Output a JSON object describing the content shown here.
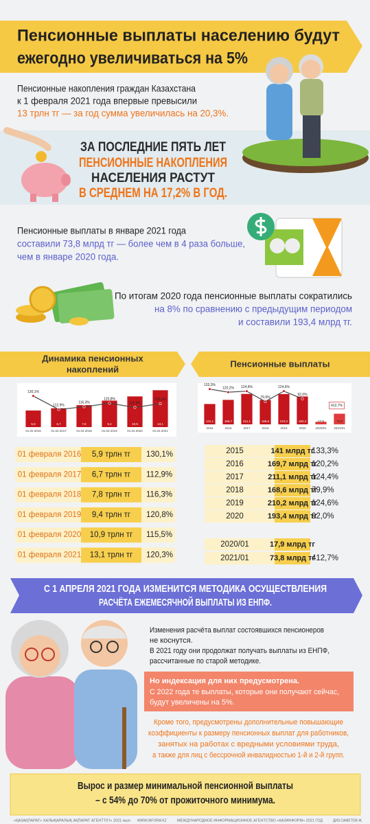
{
  "header": {
    "title_lines": [
      "Пенсионные выплаты населению будут",
      "ежегодно увеличиваться на 5%"
    ]
  },
  "intro": {
    "lines": [
      "Пенсионные накопления граждан Казахстана",
      "к 1 февраля 2021 года впервые превысили"
    ],
    "highlight": "13 трлн тг — за год сумма увеличилась на 20,3%."
  },
  "growth": {
    "lines": [
      "ЗА ПОСЛЕДНИЕ ПЯТЬ ЛЕТ",
      "ПЕНСИОННЫЕ НАКОПЛЕНИЯ",
      "НАСЕЛЕНИЯ РАСТУТ",
      "В СРЕДНЕМ НА 17,2% В ГОД."
    ]
  },
  "january": {
    "lines": [
      "Пенсионные выплаты в январе 2021 года",
      "составили 73,8 млрд тг — более чем в 4 раза больше,",
      "чем в январе 2020 года."
    ]
  },
  "results": {
    "lines": [
      "По итогам 2020 года пенсионные выплаты сократились",
      "на 8% по сравнению с предыдущим периодом",
      "и составили 193,4 млрд тг."
    ]
  },
  "savings": {
    "title_lines": [
      "Динамика пенсионных",
      "накоплений"
    ],
    "chart": {
      "categories": [
        "01.02.2016",
        "01.02.2017",
        "01.02.2018",
        "01.02.2019",
        "01.02.2020",
        "01.02.2021"
      ],
      "values": [
        5.9,
        6.7,
        7.8,
        9.4,
        10.9,
        13.1
      ],
      "value_labels": [
        "5,9",
        "6,7",
        "7,8",
        "9,4",
        "10,9",
        "13,1"
      ],
      "growth": [
        130.1,
        112.9,
        116.3,
        120.8,
        115.5,
        120.3
      ],
      "growth_labels": [
        "130,1%",
        "112,9%",
        "116,3%",
        "120,8%",
        "115,5%",
        "120,3%"
      ]
    },
    "rows": [
      [
        "01 февраля 2016",
        "5,9 трлн тг",
        "130,1%"
      ],
      [
        "01 февраля 2017",
        "6,7 трлн тг",
        "112,9%"
      ],
      [
        "01 февраля 2018",
        "7,8 трлн тг",
        "116,3%"
      ],
      [
        "01 февраля 2019",
        "9,4 трлн тг",
        "120,8%"
      ],
      [
        "01 февраля 2020",
        "10,9 трлн тг",
        "115,5%"
      ],
      [
        "01 февраля 2021",
        "13,1 трлн тг",
        "120,3%"
      ]
    ]
  },
  "payments": {
    "title": "Пенсионные выплаты",
    "chart": {
      "categories": [
        "2015",
        "2016",
        "2017",
        "2018",
        "2019",
        "2020",
        "2020/01",
        "2021/01"
      ],
      "values": [
        141.1,
        169.7,
        211.1,
        168.6,
        210.2,
        193.4,
        17.9,
        73.8
      ],
      "value_labels": [
        "141,1",
        "169,7",
        "211,1",
        "168,6",
        "210,2",
        "193,4",
        "17,9",
        "73,8"
      ],
      "growth": [
        133.3,
        120.2,
        124.4,
        79.9,
        124.6,
        92.0,
        null,
        null
      ],
      "growth_labels": [
        "133,3%",
        "120,2%",
        "124,4%",
        "79,9%",
        "124,6%",
        "92,0%",
        null,
        null
      ],
      "monthly_growth": 412.7,
      "monthly_growth_label": "412,7%"
    },
    "rows": [
      [
        "2015",
        "141 млрд тг",
        "133,3%"
      ],
      [
        "2016",
        "169,7 млрд тг",
        "120,2%"
      ],
      [
        "2017",
        "211,1 млрд тг",
        "124,4%"
      ],
      [
        "2018",
        "168,6 млрд тг",
        "79,9%"
      ],
      [
        "2019",
        "210,2 млрд тг",
        "124,6%"
      ],
      [
        "2020",
        "193,4 млрд тг",
        "92,0%"
      ]
    ],
    "monthly_rows": [
      [
        "2020/01",
        "17,9 млрд тг"
      ],
      [
        "2021/01",
        "73,8 млрд тг",
        "412,7%"
      ]
    ]
  },
  "banner": {
    "lines": [
      "С 1 АПРЕЛЯ 2021 ГОДА ИЗМЕНИТСЯ МЕТОДИКА ОСУЩЕСТВЛЕНИЯ",
      "РАСЧЁТА ЕЖЕМЕСЯЧНОЙ ВЫПЛАТЫ ИЗ ЕНПФ."
    ]
  },
  "method": {
    "paragraph": [
      "Изменения расчёта выплат состоявшихся пенсионеров",
      "не коснутся.",
      "В 2021 году они продолжат получать выплаты из ЕНПФ,",
      "рассчитанные по старой методике."
    ],
    "note_title": "Но индексация для них предусмотрена.",
    "note": [
      "С 2022 года те выплаты, которые они получают сейчас,",
      "будут увеличены на 5%."
    ],
    "extra": [
      "Кроме того, предусмотрены дополнительные повышающие",
      "коэффициенты к размеру пенсионных выплат для работников,",
      "занятых на работах с вредными условиями труда,",
      "а также для лиц с бессрочной инвалидностью 1-й и 2-й групп."
    ]
  },
  "minimum": {
    "lines": [
      "Вырос и размер минимальной пенсионной выплаты",
      "– с 54% до 70% от прожиточного минимума."
    ]
  },
  "footer": [
    "«ҚАЗАҚПАРАТ» ХАЛЫҚАРАЛЫҚ АҚПАРАТ АГЕНТТІГІ» 2021 жыл",
    "WWW.INFORM.KZ",
    "МЕЖДУНАРОДНОЕ ИНФОРМАЦИОННОЕ АГЕНТСТВО «КАЗИНФОРМ» 2021 ГОД",
    "ДИЗ.САМЕТОВ Ж."
  ]
}
